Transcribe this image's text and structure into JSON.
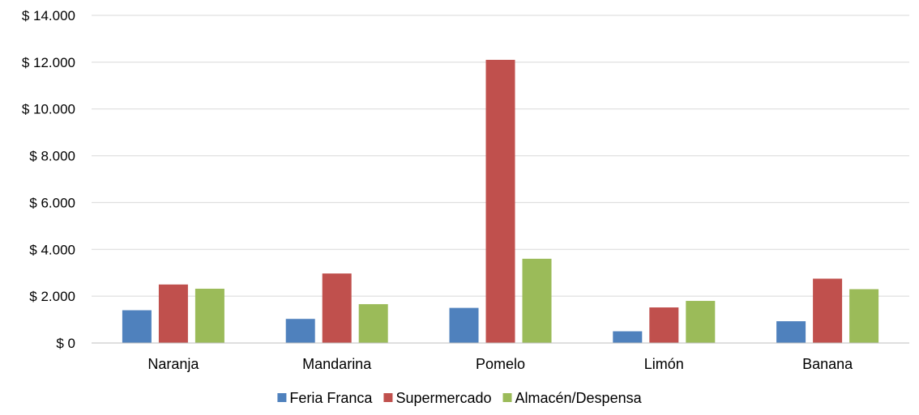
{
  "chart_data": {
    "type": "bar",
    "title": "",
    "xlabel": "",
    "ylabel": "",
    "categories": [
      "Naranja",
      "Mandarina",
      "Pomelo",
      "Limón",
      "Banana"
    ],
    "series": [
      {
        "name": "Feria Franca",
        "color": "#4f81bd",
        "values": [
          1400,
          1030,
          1500,
          500,
          930
        ]
      },
      {
        "name": "Supermercado",
        "color": "#c0504d",
        "values": [
          2500,
          2970,
          12100,
          1520,
          2750
        ]
      },
      {
        "name": "Almacén/Despensa",
        "color": "#9bbb59",
        "values": [
          2320,
          1660,
          3600,
          1800,
          2300
        ]
      }
    ],
    "ylim": [
      0,
      14000
    ],
    "yticks": [
      0,
      2000,
      4000,
      6000,
      8000,
      10000,
      12000,
      14000
    ],
    "ytick_labels": [
      "$ 0",
      "$ 2.000",
      "$ 4.000",
      "$ 6.000",
      "$ 8.000",
      "$ 10.000",
      "$ 12.000",
      "$ 14.000"
    ],
    "grid": true,
    "legend_position": "bottom"
  }
}
